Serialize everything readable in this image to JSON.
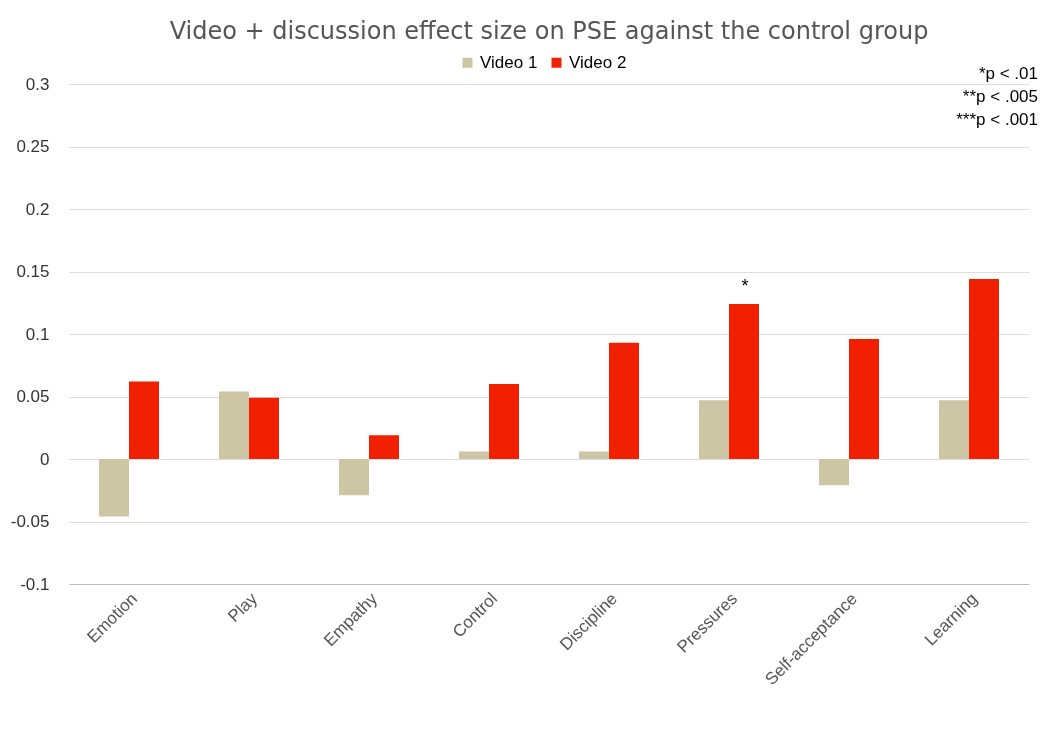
{
  "chart_data": {
    "type": "bar",
    "title": "Video + discussion effect size on PSE against the control group",
    "categories": [
      "Emotion",
      "Play",
      "Empathy",
      "Control",
      "Discipline",
      "Pressures",
      "Self-acceptance",
      "Learning"
    ],
    "series": [
      {
        "name": "Video 1",
        "color": "#cdc6a5",
        "values": [
          -0.046,
          0.054,
          -0.029,
          0.006,
          0.006,
          0.047,
          -0.021,
          0.047
        ]
      },
      {
        "name": "Video 2",
        "color": "#f02000",
        "values": [
          0.062,
          0.049,
          0.019,
          0.06,
          0.093,
          0.124,
          0.096,
          0.144
        ]
      }
    ],
    "ylim": [
      -0.1,
      0.3
    ],
    "yticks": [
      -0.1,
      -0.05,
      0,
      0.05,
      0.1,
      0.15,
      0.2,
      0.25,
      0.3
    ],
    "grid": "y",
    "legend": "top",
    "annotations": [
      {
        "text": "*",
        "x": "Pressures",
        "y": 0.124
      },
      "*p < .01",
      "**p < .005",
      "***p < .001"
    ]
  }
}
